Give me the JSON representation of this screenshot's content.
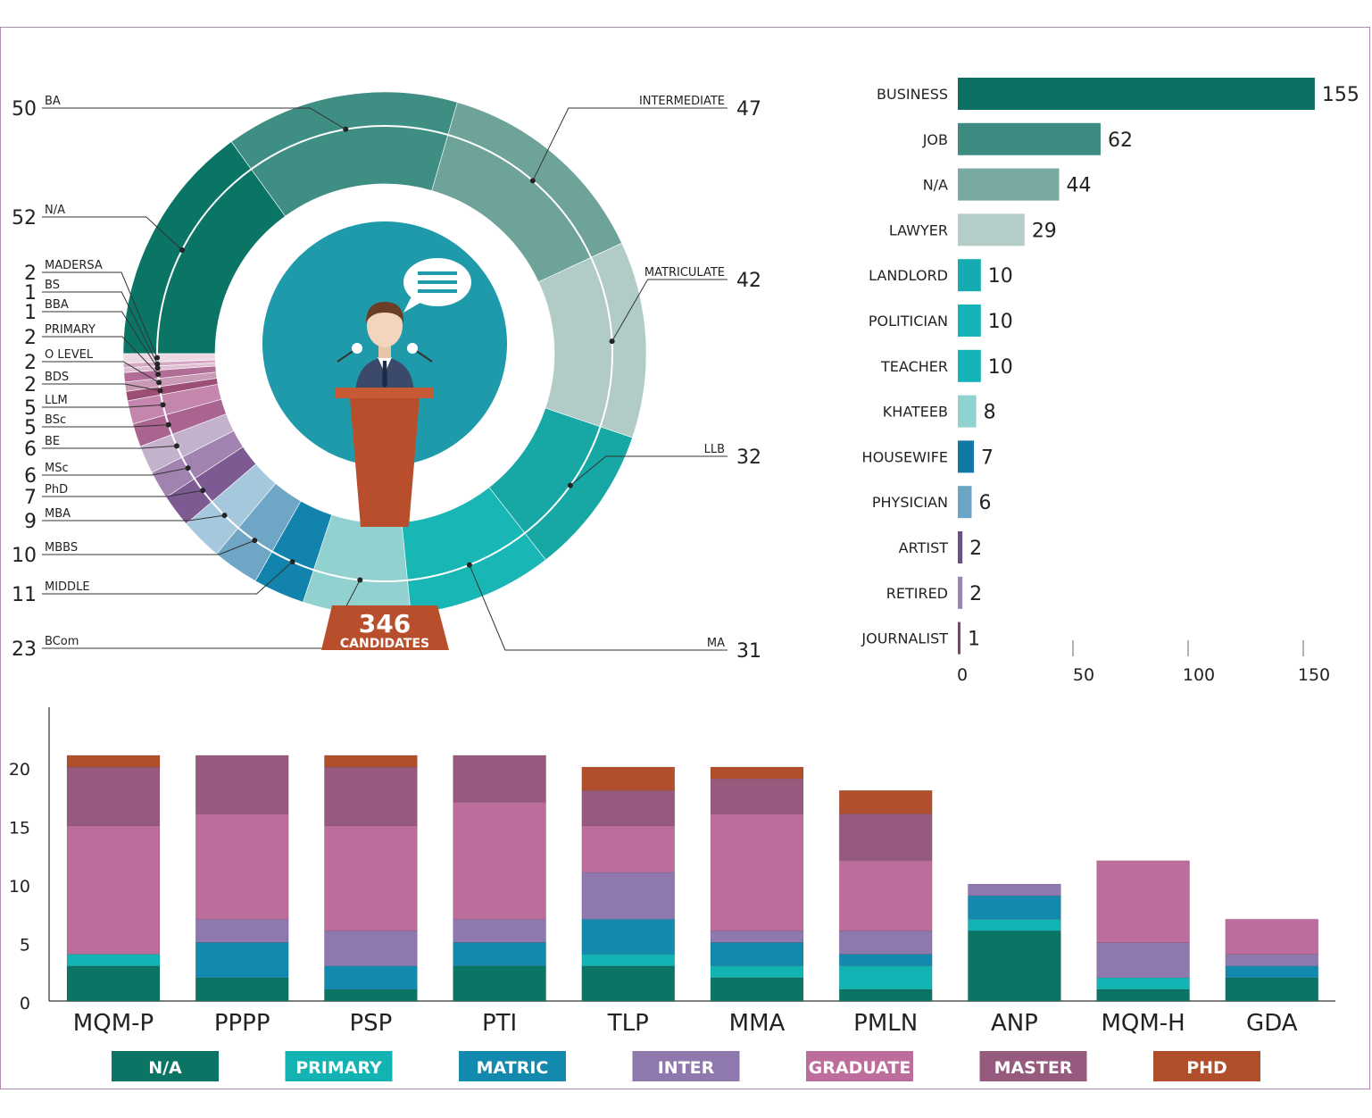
{
  "colors": {
    "na": "#0b7565",
    "primary": "#14b3b3",
    "matric": "#1389ae",
    "inter": "#8e78ae",
    "graduate": "#bd6d9b",
    "master": "#955a7d",
    "phd": "#b14f2c",
    "podium": "#b94e2d",
    "circle": "#1f9aab"
  },
  "center": {
    "total": "346",
    "caption": "CANDIDATES"
  },
  "chart_data": [
    {
      "type": "pie",
      "subtype": "donut",
      "total": 346,
      "slices": [
        {
          "label": "N/A",
          "value": 52,
          "color": "#0b7565"
        },
        {
          "label": "BA",
          "value": 50,
          "color": "#3f8e84"
        },
        {
          "label": "INTERMEDIATE",
          "value": 47,
          "color": "#6ea39a"
        },
        {
          "label": "MATRICULATE",
          "value": 42,
          "color": "#b1cbc6"
        },
        {
          "label": "LLB",
          "value": 32,
          "color": "#17a7a4"
        },
        {
          "label": "MA",
          "value": 31,
          "color": "#19b6b6"
        },
        {
          "label": "BCom",
          "value": 23,
          "color": "#91d1cf"
        },
        {
          "label": "MIDDLE",
          "value": 11,
          "color": "#1283ad"
        },
        {
          "label": "MBBS",
          "value": 10,
          "color": "#6fa6c6"
        },
        {
          "label": "MBA",
          "value": 9,
          "color": "#a6c8dc"
        },
        {
          "label": "PhD",
          "value": 7,
          "color": "#7d5b92"
        },
        {
          "label": "MSc",
          "value": 6,
          "color": "#a183b0"
        },
        {
          "label": "BE",
          "value": 6,
          "color": "#c4b2cd"
        },
        {
          "label": "BSc",
          "value": 5,
          "color": "#a96590"
        },
        {
          "label": "LLM",
          "value": 5,
          "color": "#c486ad"
        },
        {
          "label": "BDS",
          "value": 2,
          "color": "#9c4f76"
        },
        {
          "label": "O LEVEL",
          "value": 2,
          "color": "#c99ab5"
        },
        {
          "label": "PRIMARY",
          "value": 2,
          "color": "#b06d96"
        },
        {
          "label": "BBA",
          "value": 1,
          "color": "#e0bfd2"
        },
        {
          "label": "BS",
          "value": 1,
          "color": "#d5a8c3"
        },
        {
          "label": "MADERSA",
          "value": 2,
          "color": "#ecd9e4"
        }
      ]
    },
    {
      "type": "bar",
      "orientation": "horizontal",
      "categories": [
        "BUSINESS",
        "JOB",
        "N/A",
        "LAWYER",
        "LANDLORD",
        "POLITICIAN",
        "TEACHER",
        "KHATEEB",
        "HOUSEWIFE",
        "PHYSICIAN",
        "ARTIST",
        "RETIRED",
        "JOURNALIST"
      ],
      "values": [
        155,
        62,
        44,
        29,
        10,
        10,
        10,
        8,
        7,
        6,
        2,
        2,
        1
      ],
      "colors": [
        "#0b6f61",
        "#3d8c82",
        "#78aaa2",
        "#b4cdc9",
        "#14acb0",
        "#14b3b8",
        "#14b3b8",
        "#8fd2d0",
        "#1179a3",
        "#6aa5c6",
        "#6d4e8a",
        "#9b84b6",
        "#8a3d6b"
      ],
      "xticks": [
        "0",
        "50",
        "100",
        "150"
      ],
      "xlim": [
        0,
        160
      ]
    },
    {
      "type": "bar",
      "subtype": "stacked",
      "categories": [
        "MQM-P",
        "PPPP",
        "PSP",
        "PTI",
        "TLP",
        "MMA",
        "PMLN",
        "ANP",
        "MQM-H",
        "GDA"
      ],
      "series": [
        {
          "name": "N/A",
          "key": "na",
          "values": [
            3,
            2,
            1,
            3,
            3,
            2,
            1,
            6,
            1,
            2
          ]
        },
        {
          "name": "PRIMARY",
          "key": "primary",
          "values": [
            1,
            0,
            0,
            0,
            1,
            1,
            2,
            1,
            1,
            0
          ]
        },
        {
          "name": "MATRIC",
          "key": "matric",
          "values": [
            0,
            3,
            2,
            2,
            3,
            2,
            1,
            2,
            0,
            1
          ]
        },
        {
          "name": "INTER",
          "key": "inter",
          "values": [
            0,
            2,
            3,
            2,
            4,
            1,
            2,
            1,
            3,
            1
          ]
        },
        {
          "name": "GRADUATE",
          "key": "graduate",
          "values": [
            11,
            9,
            9,
            10,
            4,
            10,
            6,
            0,
            7,
            3
          ]
        },
        {
          "name": "MASTER",
          "key": "master",
          "values": [
            5,
            5,
            5,
            4,
            3,
            3,
            4,
            0,
            0,
            0
          ]
        },
        {
          "name": "PHD",
          "key": "phd",
          "values": [
            1,
            0,
            1,
            0,
            2,
            1,
            2,
            0,
            0,
            0
          ]
        }
      ],
      "yticks": [
        "0",
        "5",
        "10",
        "15",
        "20"
      ],
      "ylim": [
        0,
        24
      ]
    }
  ]
}
